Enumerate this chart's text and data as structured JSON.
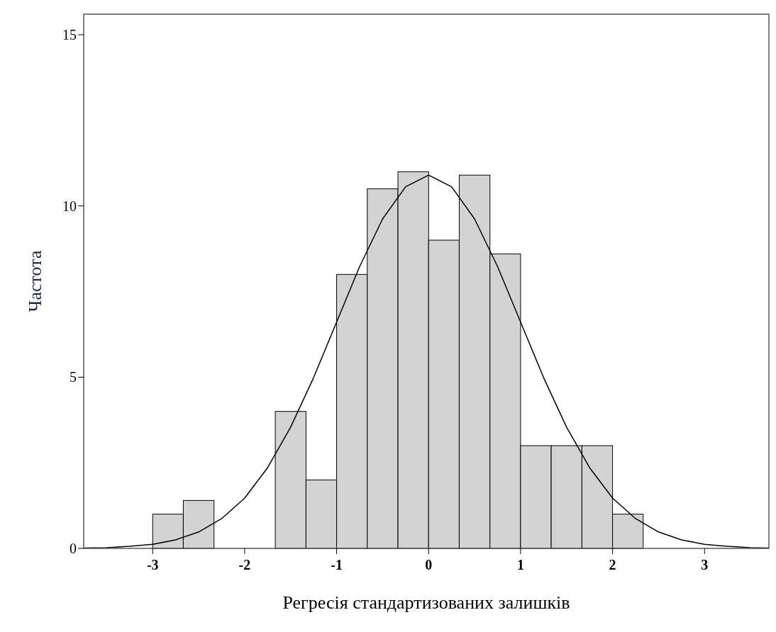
{
  "chart_data": {
    "type": "histogram",
    "xlabel": "Регресія стандартизованих залишків",
    "ylabel": "Частота",
    "bins": [
      -3,
      -2.667,
      -2.333,
      -2,
      -1.667,
      -1.333,
      -1,
      -0.667,
      -0.333,
      0,
      0.333,
      0.667,
      1,
      1.333,
      1.667,
      2,
      2.333
    ],
    "values": [
      1,
      1.4,
      0,
      0,
      4,
      2,
      8,
      10.5,
      11,
      9,
      10.9,
      8.6,
      3,
      3,
      3,
      1
    ],
    "color": "#d3d3d3",
    "series": [
      {
        "type": "line",
        "color": "#000000",
        "x": [
          -3.75,
          -3.5,
          -3.25,
          -3,
          -2.75,
          -2.5,
          -2.25,
          -2,
          -1.75,
          -1.5,
          -1.25,
          -1,
          -0.75,
          -0.5,
          -0.25,
          0,
          0.25,
          0.5,
          0.75,
          1,
          1.25,
          1.5,
          1.75,
          2,
          2.25,
          2.5,
          2.75,
          3,
          3.25,
          3.5,
          3.7
        ],
        "values": [
          0.01,
          0.02,
          0.06,
          0.12,
          0.25,
          0.48,
          0.87,
          1.47,
          2.36,
          3.54,
          4.99,
          6.61,
          8.23,
          9.62,
          10.56,
          10.9,
          10.56,
          9.62,
          8.23,
          6.61,
          4.99,
          3.54,
          2.36,
          1.47,
          0.87,
          0.48,
          0.25,
          0.12,
          0.06,
          0.02,
          0.01
        ]
      }
    ],
    "xlim": [
      -3.75,
      3.7
    ],
    "xticks": [
      -3,
      -2,
      -1,
      0,
      1,
      2,
      3
    ],
    "ylim": [
      0,
      15.6
    ],
    "yticks": [
      0,
      5,
      10,
      15
    ],
    "grid": false
  }
}
